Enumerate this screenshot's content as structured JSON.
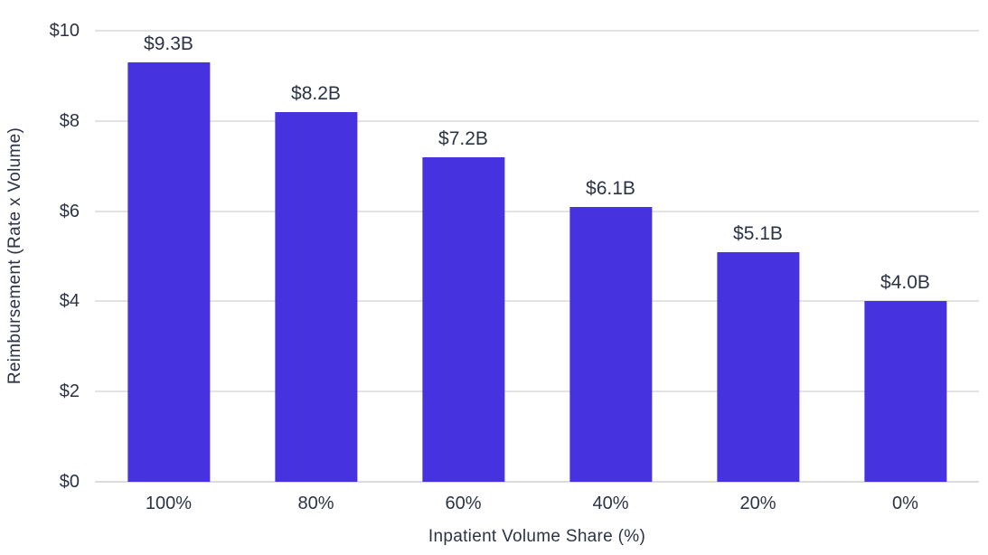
{
  "chart_data": {
    "type": "bar",
    "title": "",
    "categories": [
      "100%",
      "80%",
      "60%",
      "40%",
      "20%",
      "0%"
    ],
    "values": [
      9.3,
      8.2,
      7.2,
      6.1,
      5.1,
      4.0
    ],
    "bar_labels": [
      "$9.3B",
      "$8.2B",
      "$7.2B",
      "$6.1B",
      "$5.1B",
      "$4.0B"
    ],
    "xlabel": "Inpatient Volume Share (%)",
    "ylabel": "Reimbursement (Rate x Volume)",
    "ylim": [
      0,
      10
    ],
    "yticks": [
      0,
      2,
      4,
      6,
      8,
      10
    ],
    "ytick_labels": [
      "$0",
      "$2",
      "$4",
      "$6",
      "$8",
      "$10"
    ],
    "grid": true,
    "legend": "none",
    "colors": {
      "bar": "#4632DE",
      "text": "#2B3445",
      "gridline": "#E3E3E3",
      "baseline": "#DCDCDC",
      "background": "#FFFFFF"
    }
  }
}
